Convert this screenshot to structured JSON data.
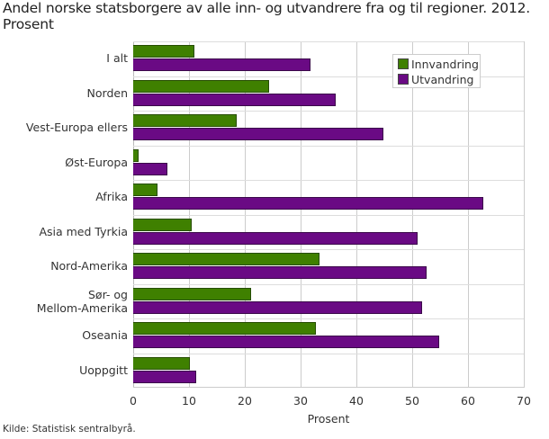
{
  "title": "Andel norske statsborgere av alle inn- og utvandrere fra og til regioner. 2012. Prosent",
  "source": "Kilde: Statistisk sentralbyrå.",
  "colors": {
    "innvandring": "#3f8000",
    "utvandring": "#6a0a84",
    "grid": "#cccccc"
  },
  "legend": {
    "items": [
      {
        "label": "Innvandring"
      },
      {
        "label": "Utvandring"
      }
    ]
  },
  "axis": {
    "xlabel": "Prosent",
    "ticks": [
      "0",
      "10",
      "20",
      "30",
      "40",
      "50",
      "60",
      "70"
    ]
  },
  "chart_data": {
    "type": "bar",
    "orientation": "horizontal",
    "title": "Andel norske statsborgere av alle inn- og utvandrere fra og til regioner. 2012. Prosent",
    "xlabel": "Prosent",
    "ylabel": "",
    "xlim": [
      0,
      70
    ],
    "grid": true,
    "legend_position": "top-right (inside plot)",
    "categories": [
      "I alt",
      "Norden",
      "Vest-Europa ellers",
      "Øst-Europa",
      "Afrika",
      "Asia med Tyrkia",
      "Nord-Amerika",
      "Sør- og Mellom-Amerika",
      "Oseania",
      "Uoppgitt"
    ],
    "series": [
      {
        "name": "Innvandring",
        "values": [
          11.0,
          24.4,
          18.5,
          1.0,
          4.4,
          10.5,
          33.4,
          21.1,
          32.8,
          10.1
        ]
      },
      {
        "name": "Utvandring",
        "values": [
          31.8,
          36.3,
          44.8,
          6.2,
          62.7,
          50.9,
          52.6,
          51.8,
          54.8,
          11.3
        ]
      }
    ],
    "source": "Kilde: Statistisk sentralbyrå."
  }
}
